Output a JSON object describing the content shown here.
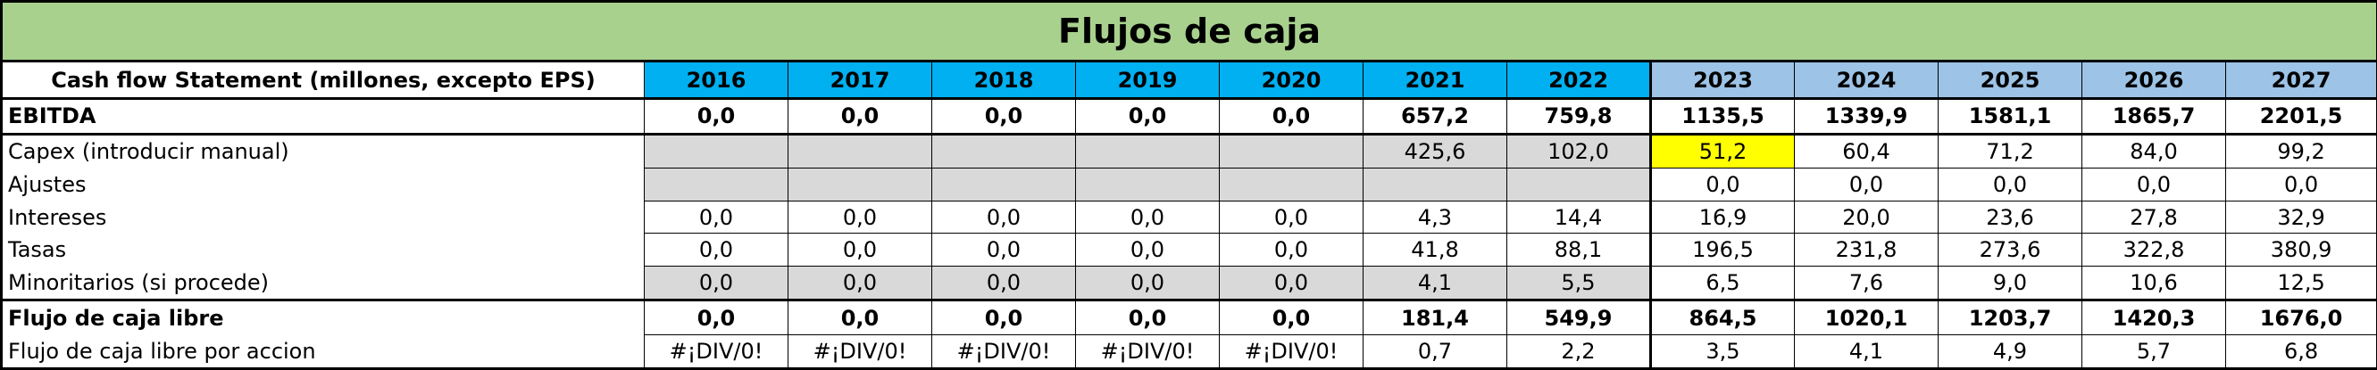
{
  "title": "Flujos de caja",
  "header_label": "Cash flow Statement (millones, excepto EPS)",
  "years": [
    "2016",
    "2017",
    "2018",
    "2019",
    "2020",
    "2021",
    "2022",
    "2023",
    "2024",
    "2025",
    "2026",
    "2027"
  ],
  "colors": {
    "title_bg": "#a9d18e",
    "historical_year_bg": "#00b0f0",
    "projected_year_bg": "#9dc3e6",
    "input_cell_bg": "#d9d9d9",
    "highlight_cell_bg": "#ffff00"
  },
  "rows": [
    {
      "label": "EBITDA",
      "bold": true,
      "values": [
        "0,0",
        "0,0",
        "0,0",
        "0,0",
        "0,0",
        "657,2",
        "759,8",
        "1135,5",
        "1339,9",
        "1581,1",
        "1865,7",
        "2201,5"
      ]
    },
    {
      "label": "Capex (introducir manual)",
      "bold": false,
      "values": [
        "",
        "",
        "",
        "",
        "",
        "425,6",
        "102,0",
        "51,2",
        "60,4",
        "71,2",
        "84,0",
        "99,2"
      ]
    },
    {
      "label": "Ajustes",
      "bold": false,
      "values": [
        "",
        "",
        "",
        "",
        "",
        "",
        "",
        "0,0",
        "0,0",
        "0,0",
        "0,0",
        "0,0"
      ]
    },
    {
      "label": "Intereses",
      "bold": false,
      "values": [
        "0,0",
        "0,0",
        "0,0",
        "0,0",
        "0,0",
        "4,3",
        "14,4",
        "16,9",
        "20,0",
        "23,6",
        "27,8",
        "32,9"
      ]
    },
    {
      "label": "Tasas",
      "bold": false,
      "values": [
        "0,0",
        "0,0",
        "0,0",
        "0,0",
        "0,0",
        "41,8",
        "88,1",
        "196,5",
        "231,8",
        "273,6",
        "322,8",
        "380,9"
      ]
    },
    {
      "label": "Minoritarios (si procede)",
      "bold": false,
      "values": [
        "0,0",
        "0,0",
        "0,0",
        "0,0",
        "0,0",
        "4,1",
        "5,5",
        "6,5",
        "7,6",
        "9,0",
        "10,6",
        "12,5"
      ]
    },
    {
      "label": "Flujo de caja libre",
      "bold": true,
      "values": [
        "0,0",
        "0,0",
        "0,0",
        "0,0",
        "0,0",
        "181,4",
        "549,9",
        "864,5",
        "1020,1",
        "1203,7",
        "1420,3",
        "1676,0"
      ]
    },
    {
      "label": "Flujo de caja libre por accion",
      "bold": false,
      "values": [
        "#¡DIV/0!",
        "#¡DIV/0!",
        "#¡DIV/0!",
        "#¡DIV/0!",
        "#¡DIV/0!",
        "0,7",
        "2,2",
        "3,5",
        "4,1",
        "4,9",
        "5,7",
        "6,8"
      ]
    }
  ]
}
